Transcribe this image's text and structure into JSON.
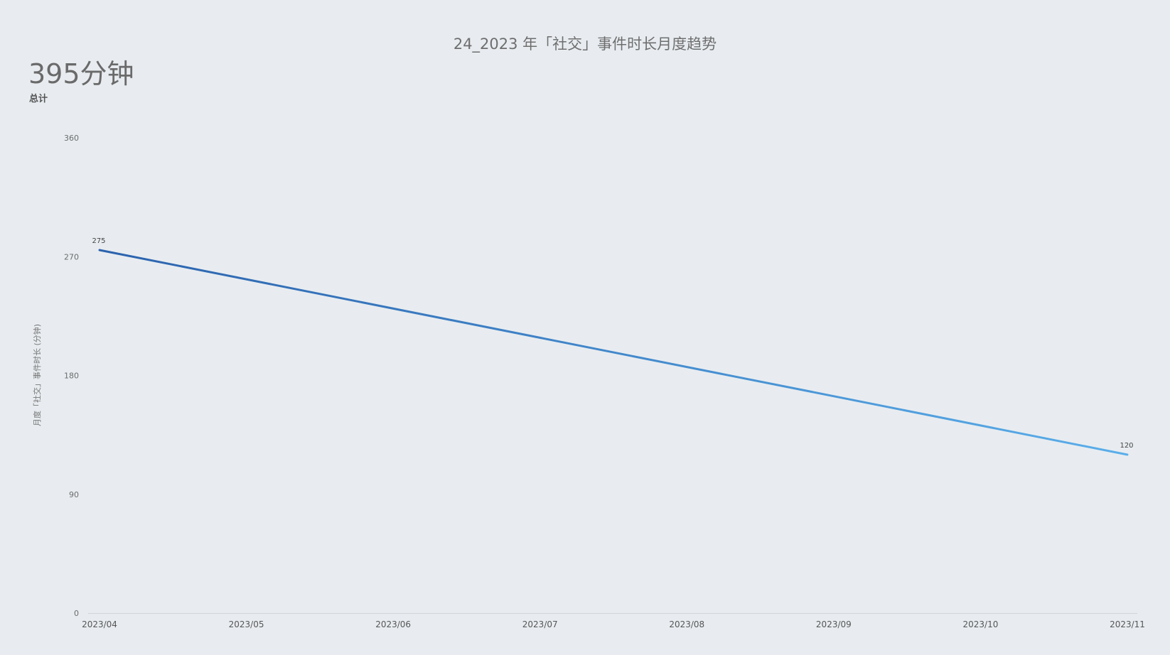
{
  "header": {
    "title": "24_2023 年「社交」事件时长月度趋势"
  },
  "kpi": {
    "value": "395分钟",
    "label": "总计"
  },
  "colors": {
    "line_start": "#2b62ad",
    "line_end": "#5aaeea",
    "axis": "#cfd5db"
  },
  "chart_data": {
    "type": "line",
    "categories": [
      "2023/04",
      "2023/05",
      "2023/06",
      "2023/07",
      "2023/08",
      "2023/09",
      "2023/10",
      "2023/11"
    ],
    "series": [
      {
        "points": [
          {
            "x": "2023/04",
            "y": 275
          },
          {
            "x": "2023/11",
            "y": 120
          }
        ]
      }
    ],
    "data_labels": [
      "275",
      "120"
    ],
    "ylabel": "月度「社交」事件时长 (分钟)",
    "xlabel": "",
    "ylim": [
      0,
      360
    ],
    "yticks": [
      0,
      90,
      180,
      270,
      360
    ],
    "grid": false,
    "legend": "none"
  }
}
